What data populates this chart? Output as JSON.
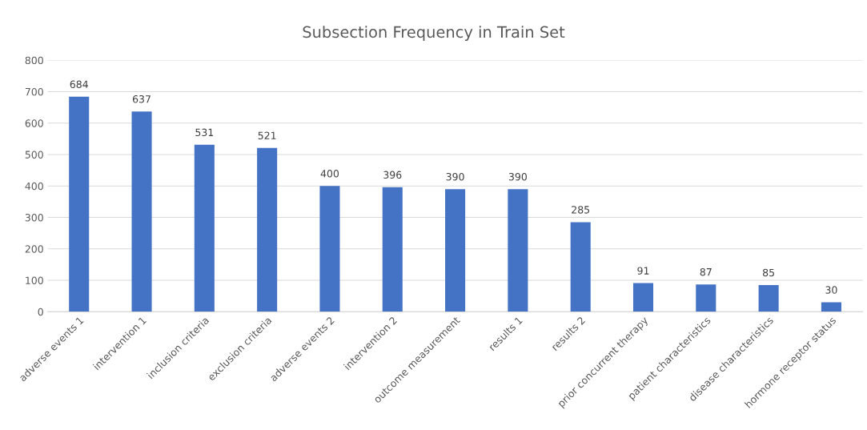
{
  "chart_data": {
    "type": "bar",
    "title": "Subsection Frequency in Train Set",
    "categories": [
      "adverse events 1",
      "intervention 1",
      "inclusion criteria",
      "exclusion criteria",
      "adverse events 2",
      "intervention 2",
      "outcome measurement",
      "results 1",
      "results 2",
      "prior concurrent therapy",
      "patient characteristics",
      "disease characteristics",
      "hormone receptor status"
    ],
    "values": [
      684,
      637,
      531,
      521,
      400,
      396,
      390,
      390,
      285,
      91,
      87,
      85,
      30
    ],
    "color": "#4472c4",
    "ylim": [
      0,
      800
    ],
    "yticks": [
      0,
      100,
      200,
      300,
      400,
      500,
      600,
      700,
      800
    ],
    "grid": "y",
    "data_labels": true
  }
}
